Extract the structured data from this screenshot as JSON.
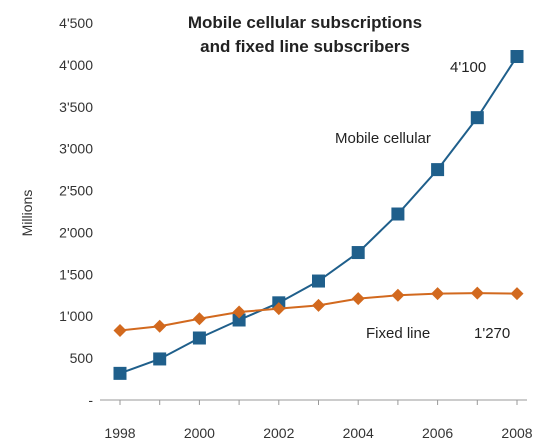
{
  "chart_data": {
    "type": "line",
    "title_lines": [
      "Mobile cellular subscriptions",
      "and fixed line subscribers"
    ],
    "ylabel": "Millions",
    "xlabel": "",
    "x": [
      1998,
      1999,
      2000,
      2001,
      2002,
      2003,
      2004,
      2005,
      2006,
      2007,
      2008
    ],
    "x_tick_labels": [
      "1998",
      "2000",
      "2002",
      "2004",
      "2006",
      "2008"
    ],
    "x_tick_values": [
      1998,
      2000,
      2002,
      2004,
      2006,
      2008
    ],
    "ylim": [
      0,
      4500
    ],
    "y_tick_values": [
      0,
      500,
      1000,
      1500,
      2000,
      2500,
      3000,
      3500,
      4000,
      4500
    ],
    "y_tick_labels": [
      "-",
      "500",
      "1'000",
      "1'500",
      "2'000",
      "2'500",
      "3'000",
      "3'500",
      "4'000",
      "4'500"
    ],
    "grid": false,
    "series": [
      {
        "name": "Mobile cellular",
        "marker": "square",
        "color": "#1f5f8b",
        "values": [
          318,
          490,
          740,
          955,
          1160,
          1420,
          1760,
          2220,
          2750,
          3370,
          4100
        ]
      },
      {
        "name": "Fixed line",
        "marker": "diamond",
        "color": "#d2691e",
        "values": [
          830,
          880,
          970,
          1050,
          1090,
          1130,
          1210,
          1250,
          1270,
          1275,
          1270
        ]
      }
    ],
    "annotations": [
      {
        "text": "4'100",
        "series": 0,
        "point": "last"
      },
      {
        "text": "1'270",
        "series": 1,
        "point": "last"
      }
    ]
  }
}
